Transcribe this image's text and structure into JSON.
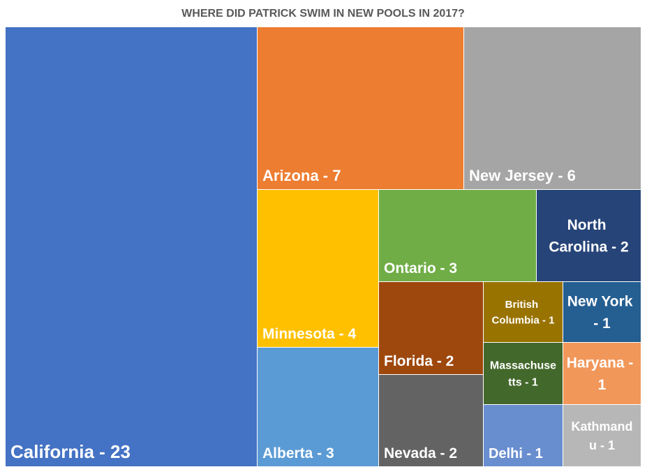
{
  "chart_data": {
    "type": "treemap",
    "title": "WHERE DID PATRICK SWIM IN NEW POOLS IN 2017?",
    "values": [
      23,
      7,
      6,
      4,
      3,
      3,
      2,
      2,
      2,
      1,
      1,
      1,
      1,
      1,
      1
    ],
    "value_labels": [
      "California - 23",
      "Arizona - 7",
      "New Jersey - 6",
      "Minnesota - 4",
      "Alberta - 3",
      "Ontario - 3",
      "North Carolina - 2",
      "Florida - 2",
      "Nevada - 2",
      "British Columbia - 1",
      "New York - 1",
      "Massachusetts - 1",
      "Haryana - 1",
      "Delhi - 1",
      "Kathmandu - 1"
    ],
    "colors": [
      "#4472c4",
      "#ed7d31",
      "#a5a5a5",
      "#ffc000",
      "#5b9bd5",
      "#70ad47",
      "#264478",
      "#9e480e",
      "#636363",
      "#997300",
      "#255e91",
      "#43682b",
      "#f1975a",
      "#698ed0",
      "#b7b7b7"
    ]
  }
}
